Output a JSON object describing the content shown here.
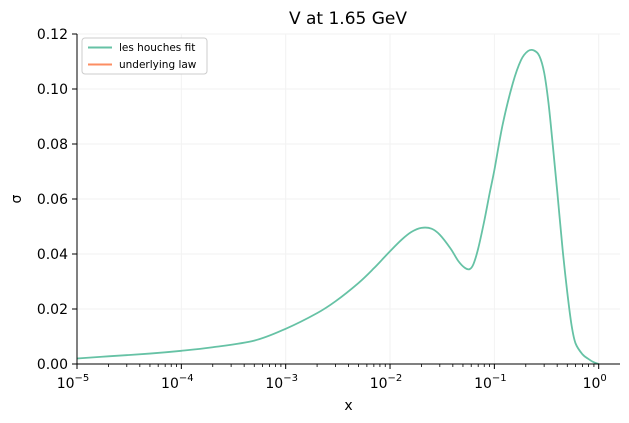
{
  "chart_data": {
    "type": "line",
    "title": "V at 1.65 GeV",
    "xlabel": "x",
    "ylabel": "σ",
    "xscale": "log",
    "xlim": [
      1e-05,
      1.6
    ],
    "ylim": [
      0,
      0.12
    ],
    "x_ticks": [
      {
        "value": 1e-05,
        "base": "10",
        "exp": "−5"
      },
      {
        "value": 0.0001,
        "base": "10",
        "exp": "−4"
      },
      {
        "value": 0.001,
        "base": "10",
        "exp": "−3"
      },
      {
        "value": 0.01,
        "base": "10",
        "exp": "−2"
      },
      {
        "value": 0.1,
        "base": "10",
        "exp": "−1"
      },
      {
        "value": 1,
        "base": "10",
        "exp": "0"
      }
    ],
    "y_ticks": [
      "0.00",
      "0.02",
      "0.04",
      "0.06",
      "0.08",
      "0.10",
      "0.12"
    ],
    "grid": true,
    "legend_position": "top-left",
    "series": [
      {
        "name": "les houches fit",
        "color": "#66c2a5",
        "x": [
          1e-05,
          2e-05,
          5e-05,
          0.0001,
          0.0002,
          0.0005,
          0.001,
          0.002,
          0.003,
          0.005,
          0.007,
          0.01,
          0.013,
          0.016,
          0.02,
          0.025,
          0.03,
          0.038,
          0.045,
          0.052,
          0.058,
          0.063,
          0.07,
          0.08,
          0.09,
          0.1,
          0.12,
          0.15,
          0.18,
          0.21,
          0.24,
          0.27,
          0.3,
          0.33,
          0.36,
          0.4,
          0.45,
          0.5,
          0.55,
          0.6,
          0.7,
          0.8,
          0.9,
          1.0
        ],
        "values": [
          0.002,
          0.0028,
          0.0038,
          0.0048,
          0.0061,
          0.0085,
          0.0128,
          0.0185,
          0.0228,
          0.0295,
          0.0348,
          0.041,
          0.0453,
          0.048,
          0.0495,
          0.0492,
          0.047,
          0.042,
          0.0375,
          0.035,
          0.0345,
          0.0363,
          0.042,
          0.052,
          0.062,
          0.0705,
          0.087,
          0.102,
          0.1105,
          0.1138,
          0.114,
          0.112,
          0.106,
          0.095,
          0.081,
          0.063,
          0.042,
          0.026,
          0.014,
          0.0075,
          0.0035,
          0.0018,
          0.0006,
          0.0
        ]
      },
      {
        "name": "underlying law",
        "color": "#fc8d62",
        "x": [],
        "values": []
      }
    ]
  }
}
